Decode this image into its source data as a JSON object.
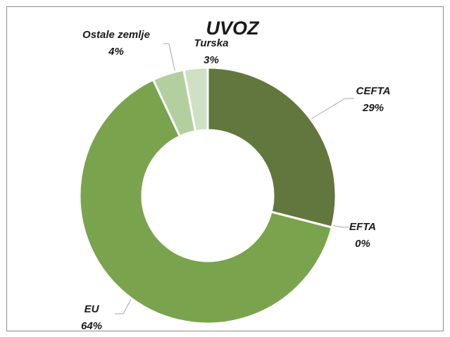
{
  "chart_data": {
    "type": "donut",
    "title": "UVOZ",
    "categories": [
      "CEFTA",
      "EFTA",
      "EU",
      "Ostale zemlje",
      "Turska"
    ],
    "values": [
      29,
      0,
      64,
      4,
      3
    ],
    "value_labels": [
      "29%",
      "0%",
      "64%",
      "4%",
      "3%"
    ],
    "colors": [
      "#61773e",
      "#61773e",
      "#7aa34d",
      "#b3cfa0",
      "#cfe0c5"
    ]
  }
}
